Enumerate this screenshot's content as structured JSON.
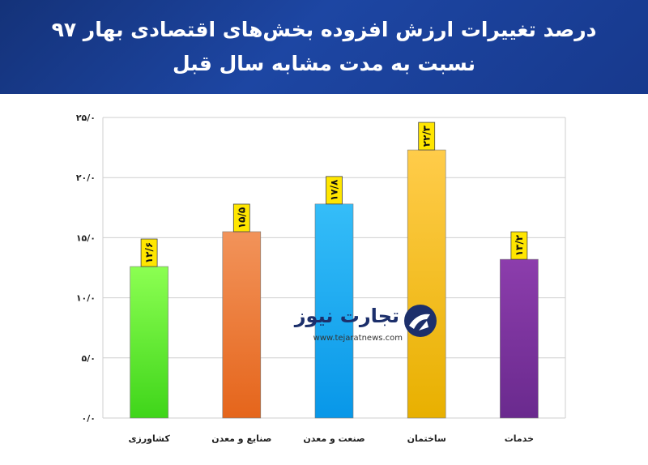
{
  "header": {
    "title_line1": "درصد تغییرات ارزش افزوده بخش‌های اقتصادی بهار ۹۷",
    "title_line2": "نسبت به مدت مشابه سال قبل"
  },
  "watermark": {
    "brand": "تجارت نیوز",
    "url": "www.tejaratnews.com"
  },
  "chart_data": {
    "type": "bar",
    "categories": [
      "کشاورزی",
      "صنایع و معدن",
      "صنعت و معدن",
      "ساختمان",
      "خدمات"
    ],
    "values": [
      12.6,
      15.5,
      17.8,
      22.3,
      13.2
    ],
    "value_labels": [
      "۱۲/۶",
      "۱۵/۵",
      "۱۷/۸",
      "۲۲/۳",
      "۱۳/۲"
    ],
    "y_ticks": [
      0,
      5,
      10,
      15,
      20,
      25
    ],
    "y_tick_labels": [
      "۰/۰",
      "۵/۰",
      "۱۰/۰",
      "۱۵/۰",
      "۲۰/۰",
      "۲۵/۰"
    ],
    "ylim": [
      0,
      25
    ],
    "grid": true,
    "colors": [
      [
        "#8cff52",
        "#3fd51a"
      ],
      [
        "#f2935a",
        "#e5651b"
      ],
      [
        "#35bdf8",
        "#0897e8"
      ],
      [
        "#ffcc4a",
        "#e8b000"
      ],
      [
        "#8c3dac",
        "#6a2a8e"
      ]
    ],
    "label_box_color": "#ffe600"
  }
}
